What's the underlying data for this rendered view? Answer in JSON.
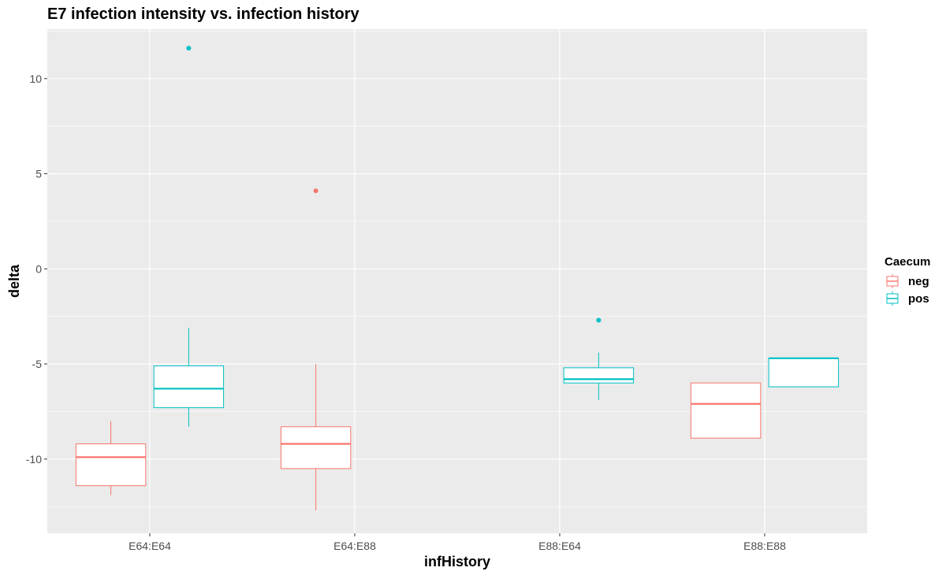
{
  "chart_data": {
    "type": "boxplot",
    "title": "E7 infection intensity vs. infection history",
    "xlabel": "infHistory",
    "ylabel": "delta",
    "categories": [
      "E64:E64",
      "E64:E88",
      "E88:E64",
      "E88:E88"
    ],
    "ylim": [
      -13.9,
      12.6
    ],
    "yticks": [
      -10,
      -5,
      0,
      5,
      10
    ],
    "ytick_labels": [
      "-10",
      "-5",
      "0",
      "5",
      "10"
    ],
    "grid": true,
    "legend": {
      "title": "Caecum",
      "position": "right",
      "entries": [
        "neg",
        "pos"
      ]
    },
    "series": [
      {
        "name": "neg",
        "color": "#F8766D",
        "boxes": [
          {
            "category": "E64:E64",
            "whisker_low": -11.9,
            "q1": -11.4,
            "median": -9.9,
            "q3": -9.2,
            "whisker_high": -8.0,
            "outliers": []
          },
          {
            "category": "E64:E88",
            "whisker_low": -12.7,
            "q1": -10.5,
            "median": -9.2,
            "q3": -8.3,
            "whisker_high": -5.0,
            "outliers": [
              4.1
            ]
          },
          {
            "category": "E88:E88",
            "whisker_low": -8.9,
            "q1": -8.9,
            "median": -7.1,
            "q3": -6.0,
            "whisker_high": -6.0,
            "outliers": []
          }
        ]
      },
      {
        "name": "pos",
        "color": "#00BFC4",
        "boxes": [
          {
            "category": "E64:E64",
            "whisker_low": -8.3,
            "q1": -7.3,
            "median": -6.3,
            "q3": -5.1,
            "whisker_high": -3.1,
            "outliers": [
              11.6
            ]
          },
          {
            "category": "E88:E64",
            "whisker_low": -6.9,
            "q1": -6.0,
            "median": -5.8,
            "q3": -5.2,
            "whisker_high": -4.4,
            "outliers": [
              -2.7
            ]
          },
          {
            "category": "E88:E88",
            "whisker_low": -6.2,
            "q1": -6.2,
            "median": -4.7,
            "q3": -4.7,
            "whisker_high": -4.7,
            "outliers": []
          }
        ]
      }
    ]
  }
}
